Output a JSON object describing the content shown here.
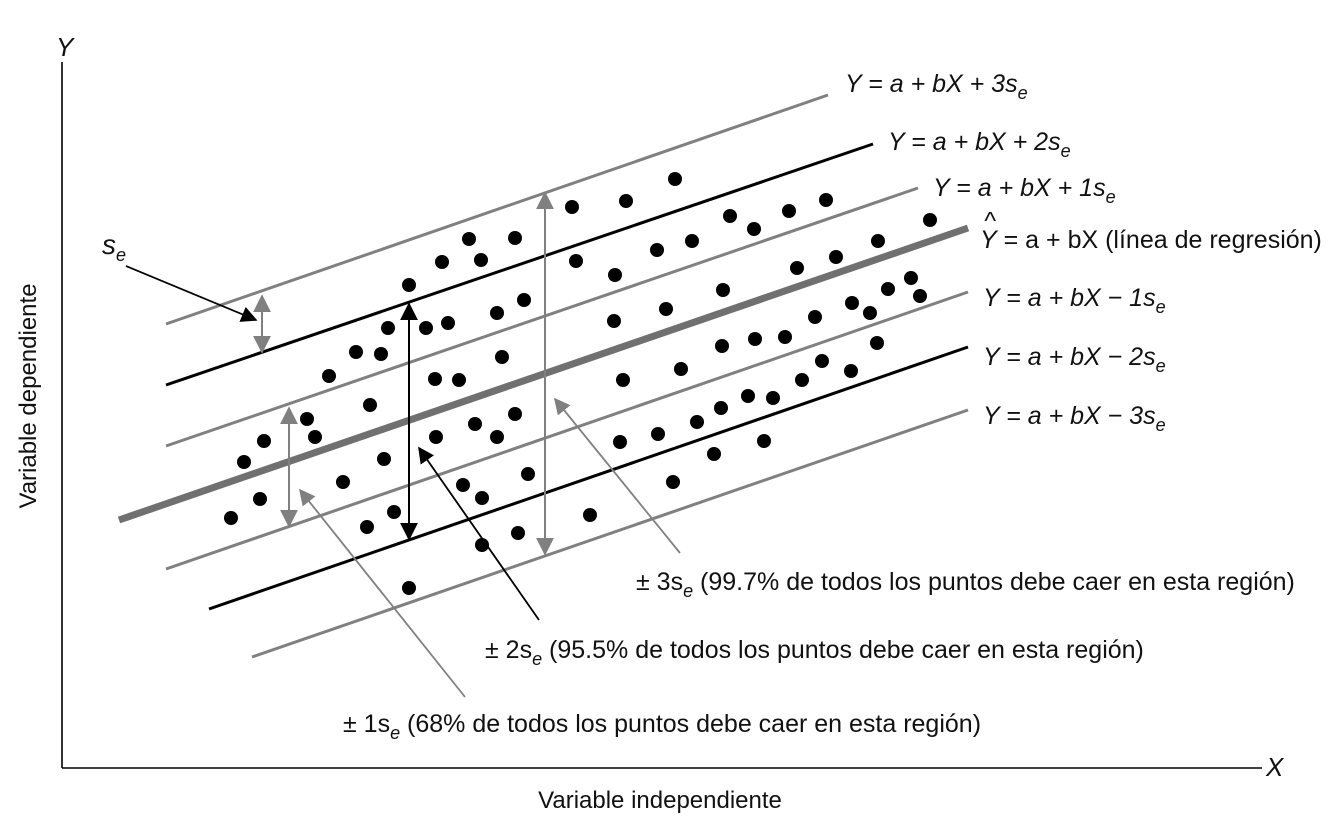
{
  "axes": {
    "y_letter": "Y",
    "x_letter": "X",
    "y_title": "Variable dependiente",
    "x_title": "Variable independiente"
  },
  "band_labels": {
    "plus3": {
      "pre": "Y = a + bX + 3s",
      "sub": "e"
    },
    "plus2": {
      "pre": "Y = a + bX + 2s",
      "sub": "e"
    },
    "plus1": {
      "pre": "Y = a + bX + 1s",
      "sub": "e"
    },
    "regression": {
      "hat": "^",
      "pre": "Y",
      "post": " = a + bX (línea de regresión)"
    },
    "minus1": {
      "pre": "Y = a + bX − 1s",
      "sub": "e"
    },
    "minus2": {
      "pre": "Y = a + bX − 2s",
      "sub": "e"
    },
    "minus3": {
      "pre": "Y = a + bX − 3s",
      "sub": "e"
    }
  },
  "se_label": {
    "pre": "s",
    "sub": "e"
  },
  "annotations": {
    "three": {
      "pre": "± 3s",
      "sub": "e",
      "post": " (99.7% de todos los puntos debe caer en esta región)"
    },
    "two": {
      "pre": "± 2s",
      "sub": "e",
      "post": " (95.5% de todos los puntos debe caer en esta región)"
    },
    "one": {
      "pre": "± 1s",
      "sub": "e",
      "post": " (68% de todos los puntos debe caer en esta región)"
    }
  },
  "colors": {
    "black": "#000000",
    "gray": "#808080",
    "regression": "#707070"
  }
}
